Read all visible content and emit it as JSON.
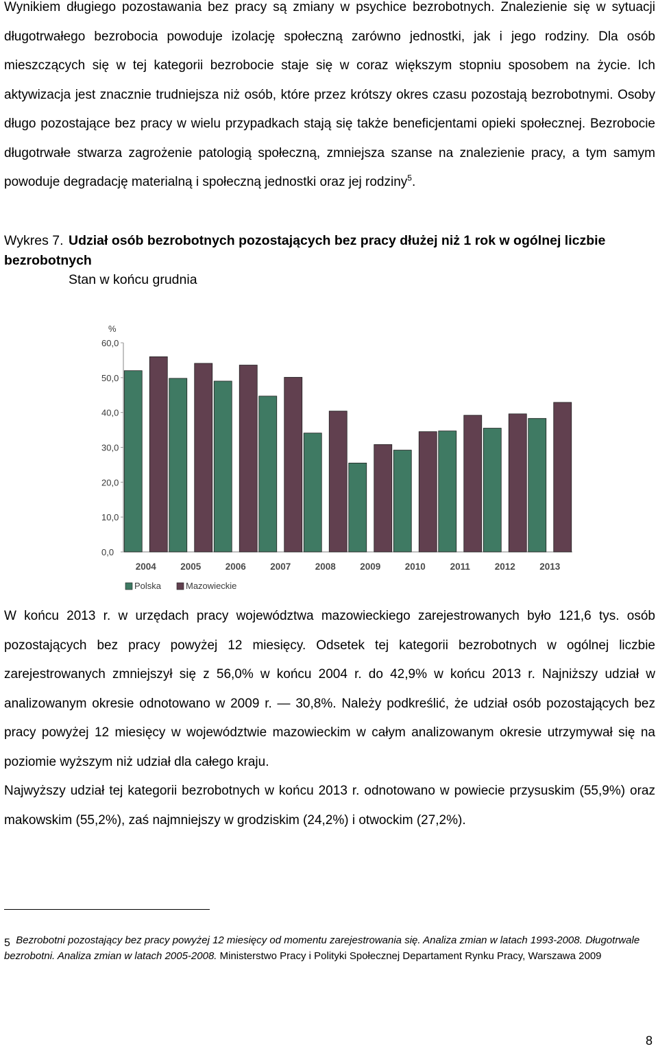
{
  "paragraph1": {
    "text": "Wynikiem długiego pozostawania bez pracy są zmiany w psychice bezrobotnych. Znalezienie się w sytuacji długotrwałego bezrobocia powoduje izolację społeczną zarówno jednostki, jak i jego rodziny. Dla osób mieszczących się w tej kategorii bezrobocie staje się w coraz większym stopniu sposobem na życie. Ich aktywizacja jest znacznie trudniejsza niż osób, które przez krótszy okres czasu pozostają bezrobotnymi. Osoby długo pozostające bez pracy w wielu przypadkach stają się także beneficjentami opieki społecznej. Bezrobocie długotrwałe stwarza zagrożenie patologią społeczną, zmniejsza szanse na znalezienie pracy, a tym samym powoduje degradację materialną i społeczną jednostki oraz jej rodziny",
    "footnote_ref": "5",
    "end": "."
  },
  "caption": {
    "prefix": "Wykres 7.",
    "title": "Udział osób bezrobotnych pozostających bez pracy dłużej niż 1 rok w ogólnej liczbie bezrobotnych",
    "subtitle": "Stan w końcu grudnia"
  },
  "chart_data": {
    "type": "bar",
    "unit_label": "%",
    "categories": [
      "2004",
      "2005",
      "2006",
      "2007",
      "2008",
      "2009",
      "2010",
      "2011",
      "2012",
      "2013"
    ],
    "series": [
      {
        "name": "Polska",
        "color": "#3f7a63",
        "values": [
          52.0,
          49.8,
          49.0,
          44.7,
          34.1,
          25.5,
          29.2,
          34.7,
          35.5,
          38.3
        ]
      },
      {
        "name": "Mazowieckie",
        "color": "#61404f",
        "values": [
          56.0,
          54.1,
          53.6,
          50.1,
          40.4,
          30.8,
          34.5,
          39.2,
          39.6,
          42.9
        ]
      }
    ],
    "yticks": [
      "0,0",
      "10,0",
      "20,0",
      "30,0",
      "40,0",
      "50,0",
      "60,0"
    ],
    "ylim": [
      0,
      60
    ],
    "legend_position": "bottom-left",
    "grid": false
  },
  "paragraph2": {
    "text": "W końcu 2013 r. w urzędach pracy województwa mazowieckiego zarejestrowanych było 121,6 tys. osób pozostających bez pracy powyżej 12 miesięcy. Odsetek tej kategorii bezrobotnych w ogólnej liczbie zarejestrowanych zmniejszył się z 56,0% w końcu 2004 r. do 42,9% w końcu 2013 r. Najniższy udział w analizowanym okresie odnotowano w 2009 r. — 30,8%. Należy podkreślić, że udział osób pozostających bez pracy powyżej 12 miesięcy w województwie mazowieckim w całym analizowanym okresie utrzymywał się na poziomie wyższym niż udział dla całego kraju."
  },
  "paragraph3": {
    "text": "Najwyższy udział tej kategorii bezrobotnych w końcu 2013 r. odnotowano w powiecie przysuskim (55,9%) oraz makowskim (55,2%), zaś najmniejszy w grodziskim (24,2%) i otwockim (27,2%)."
  },
  "footnote": {
    "number": "5",
    "italic_text": "Bezrobotni pozostający bez pracy powyżej 12 miesięcy od momentu zarejestrowania się. Analiza zmian w latach 1993-2008. Długotrwale bezrobotni. Analiza zmian w latach 2005-2008.",
    "plain_text": " Ministerstwo Pracy i Polityki Społecznej Departament Rynku Pracy, Warszawa 2009"
  },
  "page_number": "8"
}
